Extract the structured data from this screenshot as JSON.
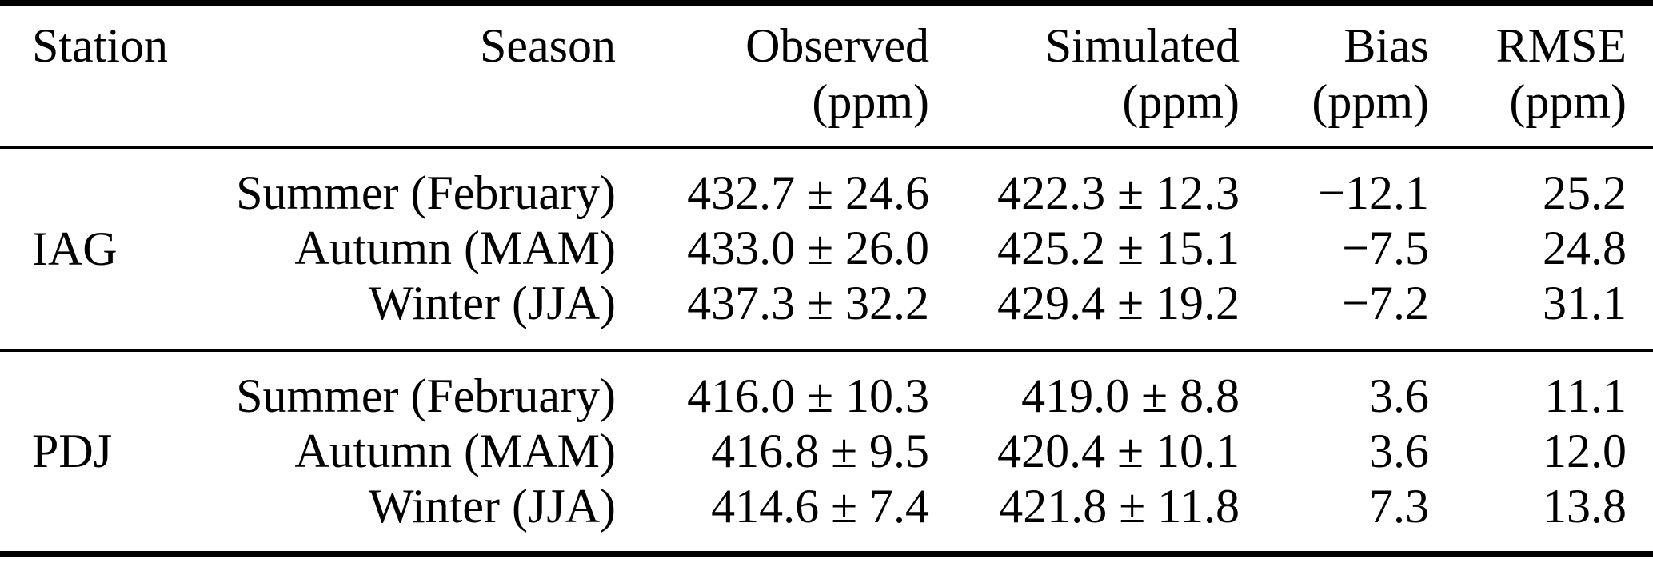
{
  "page": {
    "background": "#ffffff",
    "text_color": "#000000"
  },
  "table": {
    "headers": [
      {
        "label": "Station",
        "unit": ""
      },
      {
        "label": "Season",
        "unit": ""
      },
      {
        "label": "Observed",
        "unit": "(ppm)"
      },
      {
        "label": "Simulated",
        "unit": "(ppm)"
      },
      {
        "label": "Bias",
        "unit": "(ppm)"
      },
      {
        "label": "RMSE",
        "unit": "(ppm)"
      }
    ],
    "groups": [
      {
        "station": "IAG",
        "rows": [
          {
            "season": "Summer (February)",
            "observed": "432.7 ± 24.6",
            "simulated": "422.3 ± 12.3",
            "bias": "−12.1",
            "rmse": "25.2"
          },
          {
            "season": "Autumn (MAM)",
            "observed": "433.0 ± 26.0",
            "simulated": "425.2 ± 15.1",
            "bias": "−7.5",
            "rmse": "24.8"
          },
          {
            "season": "Winter (JJA)",
            "observed": "437.3 ± 32.2",
            "simulated": "429.4 ± 19.2",
            "bias": "−7.2",
            "rmse": "31.1"
          }
        ]
      },
      {
        "station": "PDJ",
        "rows": [
          {
            "season": "Summer (February)",
            "observed": "416.0 ± 10.3",
            "simulated": "419.0 ± 8.8",
            "bias": "3.6",
            "rmse": "11.1"
          },
          {
            "season": "Autumn (MAM)",
            "observed": "416.8 ± 9.5",
            "simulated": "420.4 ± 10.1",
            "bias": "3.6",
            "rmse": "12.0"
          },
          {
            "season": "Winter (JJA)",
            "observed": "414.6 ± 7.4",
            "simulated": "421.8 ± 11.8",
            "bias": "7.3",
            "rmse": "13.8"
          }
        ]
      }
    ]
  },
  "chart_data": {
    "type": "table",
    "columns": [
      "Station",
      "Season",
      "Observed (ppm)",
      "Simulated (ppm)",
      "Bias (ppm)",
      "RMSE (ppm)"
    ],
    "rows": [
      [
        "IAG",
        "Summer (February)",
        "432.7 ± 24.6",
        "422.3 ± 12.3",
        "−12.1",
        "25.2"
      ],
      [
        "IAG",
        "Autumn (MAM)",
        "433.0 ± 26.0",
        "425.2 ± 15.1",
        "−7.5",
        "24.8"
      ],
      [
        "IAG",
        "Winter (JJA)",
        "437.3 ± 32.2",
        "429.4 ± 19.2",
        "−7.2",
        "31.1"
      ],
      [
        "PDJ",
        "Summer (February)",
        "416.0 ± 10.3",
        "419.0 ± 8.8",
        "3.6",
        "11.1"
      ],
      [
        "PDJ",
        "Autumn (MAM)",
        "416.8 ± 9.5",
        "420.4 ± 10.1",
        "3.6",
        "12.0"
      ],
      [
        "PDJ",
        "Winter (JJA)",
        "414.6 ± 7.4",
        "421.8 ± 11.8",
        "7.3",
        "13.8"
      ]
    ]
  }
}
